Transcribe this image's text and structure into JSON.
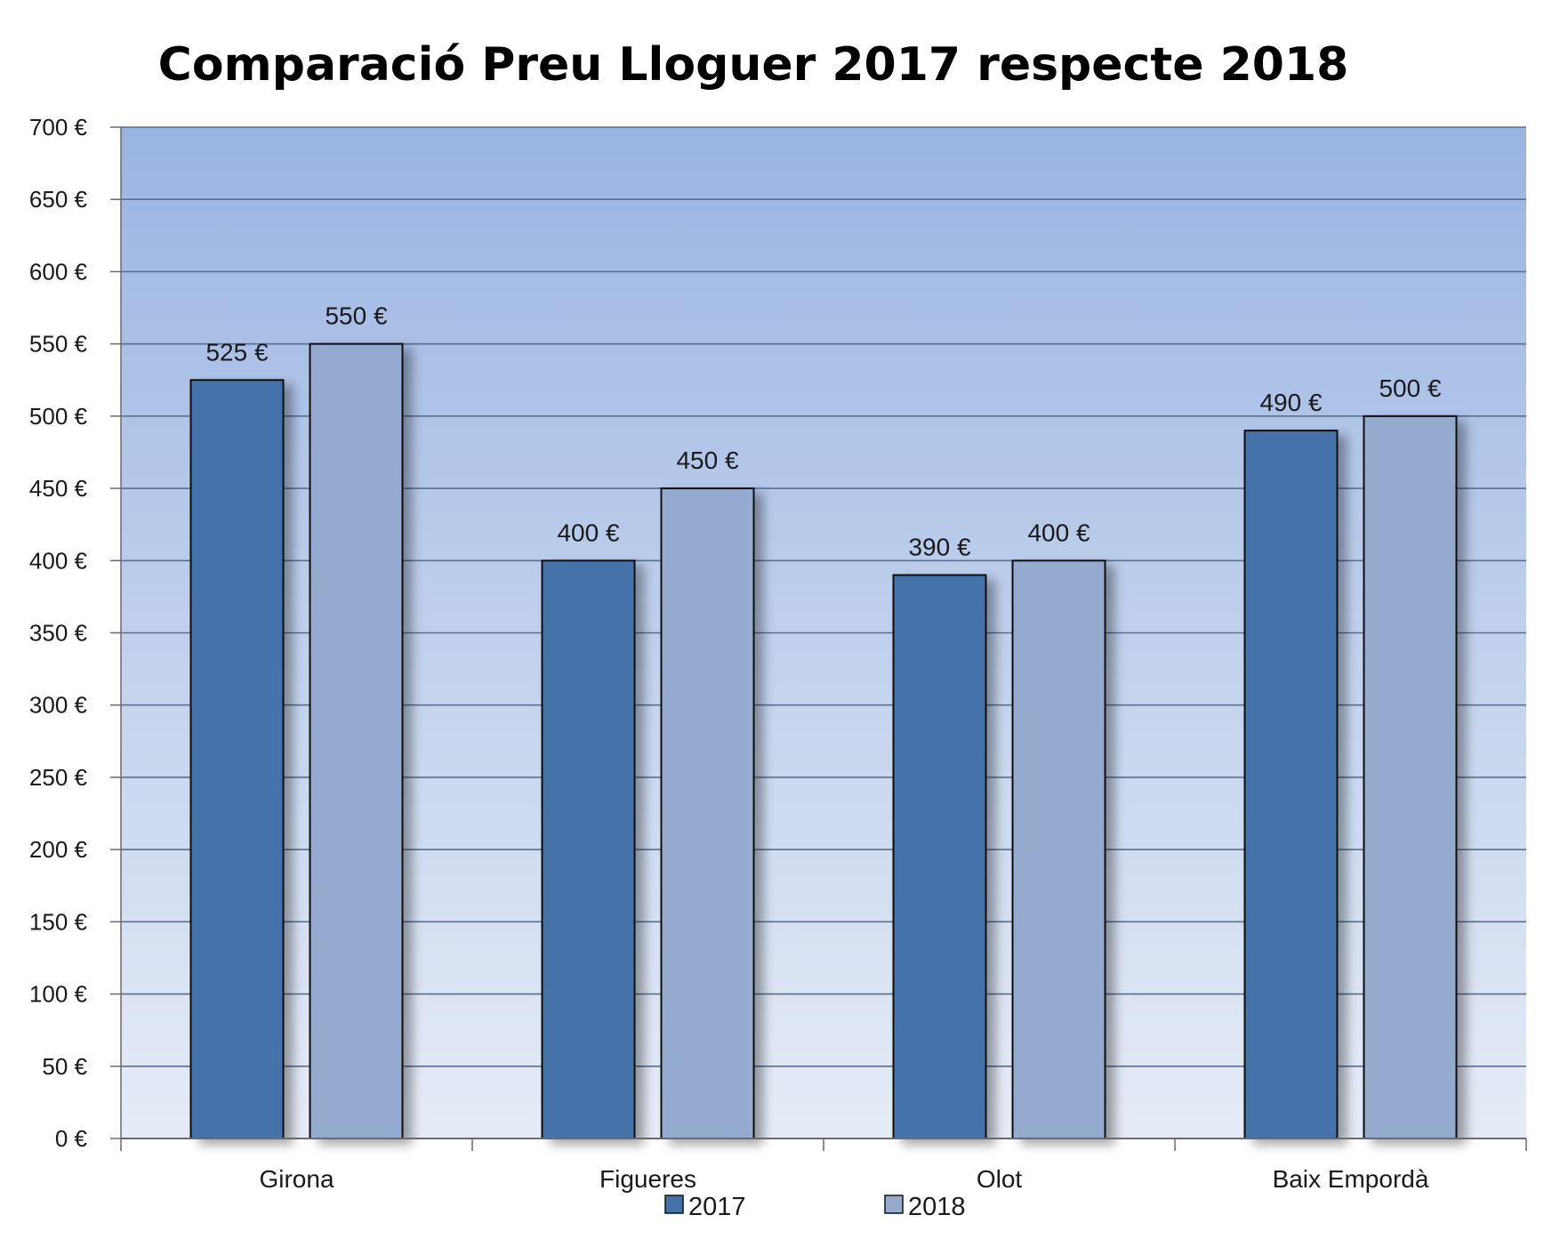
{
  "chart_data": {
    "type": "bar",
    "title": "Comparació Preu Lloguer 2017 respecte 2018",
    "xlabel": "",
    "ylabel": "",
    "categories": [
      "Girona",
      "Figueres",
      "Olot",
      "Baix Empordà"
    ],
    "series": [
      {
        "name": "2017",
        "values": [
          525,
          400,
          390,
          490
        ],
        "color": "#4472a8"
      },
      {
        "name": "2018",
        "values": [
          550,
          450,
          400,
          500
        ],
        "color": "#95aacf"
      }
    ],
    "data_labels": [
      [
        "525 €",
        "400 €",
        "390 €",
        "490 €"
      ],
      [
        "550 €",
        "450 €",
        "400 €",
        "500 €"
      ]
    ],
    "ylim": [
      0,
      700
    ],
    "yticks": [
      0,
      50,
      100,
      150,
      200,
      250,
      300,
      350,
      400,
      450,
      500,
      550,
      600,
      650,
      700
    ],
    "ytick_labels": [
      "0 €",
      "50 €",
      "100 €",
      "150 €",
      "200 €",
      "250 €",
      "300 €",
      "350 €",
      "400 €",
      "450 €",
      "500 €",
      "550 €",
      "600 €",
      "650 €",
      "700 €"
    ],
    "grid": true,
    "legend_position": "bottom",
    "plot_background": [
      "#9ab4e2",
      "#e6ecf7"
    ],
    "gridline_color": "#5a6f8f"
  }
}
